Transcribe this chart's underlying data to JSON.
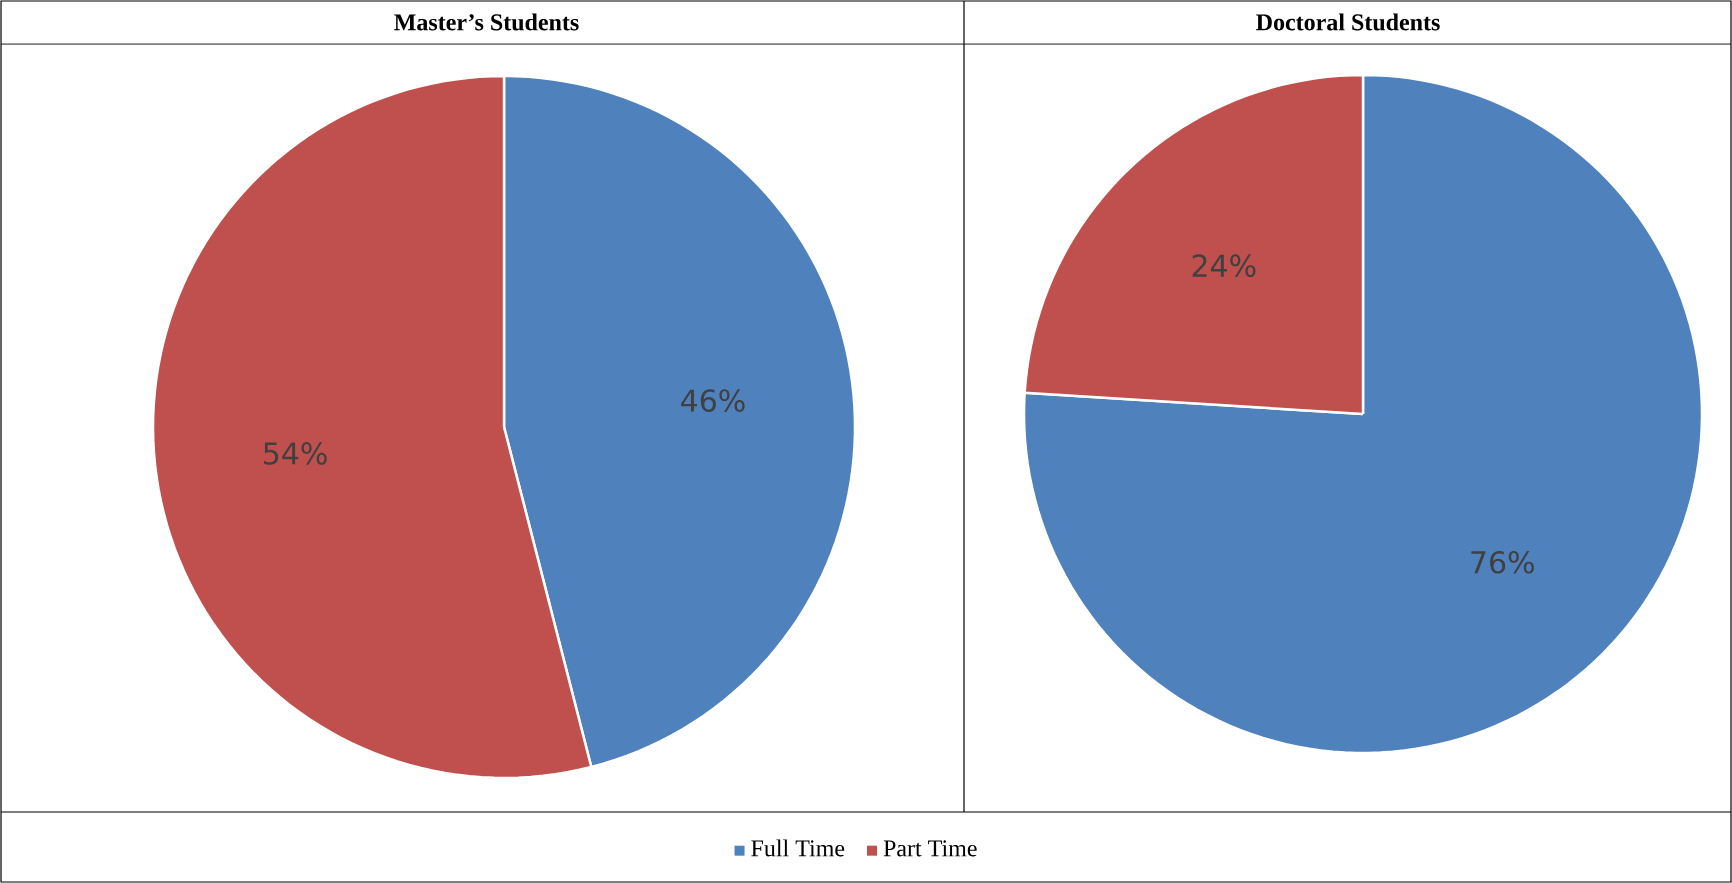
{
  "chart_data": [
    {
      "type": "pie",
      "title": "Master’s Students",
      "categories": [
        "Full Time",
        "Part Time"
      ],
      "values": [
        46,
        54
      ],
      "colors": [
        "#4f81bd",
        "#c0504d"
      ],
      "value_labels": [
        "46%",
        "54%"
      ],
      "legend": "bottom"
    },
    {
      "type": "pie",
      "title": "Doctoral Students",
      "categories": [
        null,
        null
      ],
      "values": [
        76,
        24
      ],
      "colors": [
        "#4f81bd",
        "#c0504d"
      ],
      "value_labels": [
        "76%",
        "24%"
      ]
    }
  ]
}
